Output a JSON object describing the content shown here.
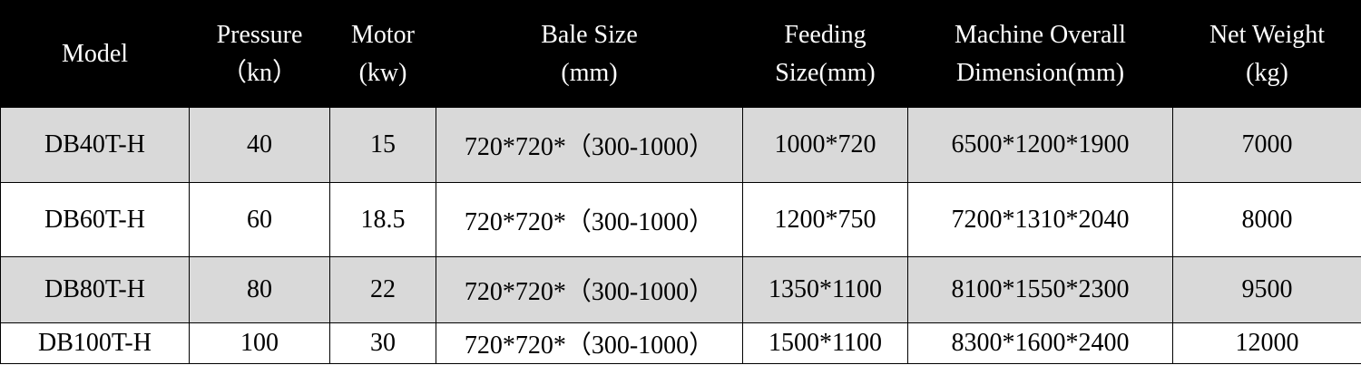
{
  "table": {
    "header": [
      [
        "Model"
      ],
      [
        "Pressure",
        "（kn）"
      ],
      [
        "Motor",
        "(kw)"
      ],
      [
        "Bale Size",
        "(mm)"
      ],
      [
        "Feeding",
        "Size(mm)"
      ],
      [
        "Machine Overall",
        "Dimension(mm)"
      ],
      [
        "Net Weight",
        "(kg)"
      ]
    ],
    "rows": [
      [
        "DB40T-H",
        "40",
        "15",
        "720*720*（300-1000）",
        "1000*720",
        "6500*1200*1900",
        "7000"
      ],
      [
        "DB60T-H",
        "60",
        "18.5",
        "720*720*（300-1000）",
        "1200*750",
        "7200*1310*2040",
        "8000"
      ],
      [
        "DB80T-H",
        "80",
        "22",
        "720*720*（300-1000）",
        "1350*1100",
        "8100*1550*2300",
        "9500"
      ],
      [
        "DB100T-H",
        "100",
        "30",
        "720*720*（300-1000）",
        "1500*1100",
        "8300*1600*2400",
        "12000"
      ]
    ]
  }
}
